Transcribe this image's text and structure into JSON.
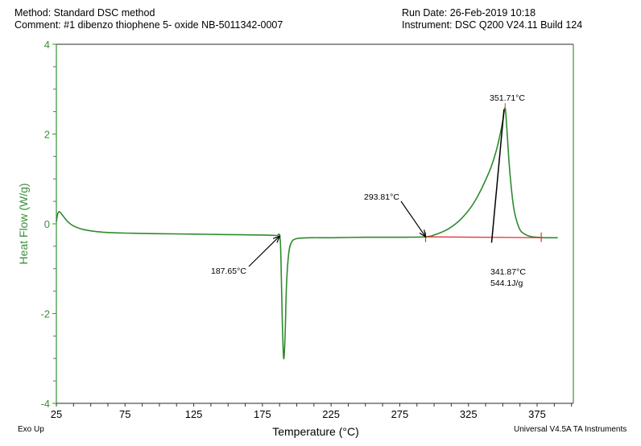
{
  "header": {
    "method": "Method: Standard DSC method",
    "comment": "Comment: #1 dibenzo thiophene 5- oxide NB-5011342-0007",
    "run_date": "Run Date: 26-Feb-2019 10:18",
    "instrument": "Instrument: DSC Q200 V24.11 Build 124"
  },
  "footer": {
    "exo_up": "Exo Up",
    "software": "Universal V4.5A TA Instruments"
  },
  "colors": {
    "curve": "#2e8b2e",
    "axis_left": "#3a8f3a",
    "baseline": "#e03030",
    "annotation": "#000000"
  },
  "chart_data": {
    "type": "line",
    "title": "",
    "xlabel": "Temperature (°C)",
    "ylabel": "Heat Flow (W/g)",
    "xlim": [
      25,
      401
    ],
    "ylim": [
      -4,
      4
    ],
    "xticks": [
      "25",
      "75",
      "125",
      "175",
      "225",
      "275",
      "325",
      "375"
    ],
    "yticks": [
      "4",
      "2",
      "0",
      "-2",
      "-4"
    ],
    "grid": false,
    "legend": "none",
    "series": [
      {
        "name": "Heat Flow",
        "x": [
          25,
          26,
          27,
          28,
          30,
          33,
          37,
          45,
          60,
          80,
          100,
          125,
          150,
          175,
          185,
          187.65,
          188.5,
          189.5,
          190.5,
          191.5,
          192.5,
          194,
          196,
          200,
          210,
          225,
          250,
          275,
          293.81,
          300,
          310,
          320,
          330,
          340,
          345,
          348,
          350,
          351.71,
          353,
          355,
          358,
          362,
          366,
          370,
          375,
          380,
          385,
          390
        ],
        "values": [
          0.05,
          0.22,
          0.27,
          0.25,
          0.17,
          0.06,
          -0.04,
          -0.13,
          -0.19,
          -0.21,
          -0.22,
          -0.23,
          -0.24,
          -0.25,
          -0.26,
          -0.27,
          -0.8,
          -2.2,
          -3.0,
          -2.5,
          -1.4,
          -0.7,
          -0.42,
          -0.33,
          -0.31,
          -0.31,
          -0.3,
          -0.3,
          -0.29,
          -0.25,
          -0.12,
          0.12,
          0.52,
          1.15,
          1.6,
          1.98,
          2.3,
          2.58,
          2.1,
          1.2,
          0.35,
          -0.1,
          -0.23,
          -0.28,
          -0.3,
          -0.31,
          -0.31,
          -0.31
        ]
      }
    ],
    "annotations": [
      {
        "label": "187.65°C",
        "type": "onset",
        "x": 187.65,
        "y": -0.27
      },
      {
        "label": "293.81°C",
        "type": "onset",
        "x": 293.81,
        "y": -0.29
      },
      {
        "label": "351.71°C",
        "type": "peak",
        "x": 351.71,
        "y": 2.58
      },
      {
        "label": "341.87°C",
        "type": "extrapolated onset",
        "x": 341.87,
        "y": -0.32
      },
      {
        "label": "544.1J/g",
        "type": "enthalpy",
        "integration_range": [
          293.81,
          378
        ]
      }
    ]
  }
}
